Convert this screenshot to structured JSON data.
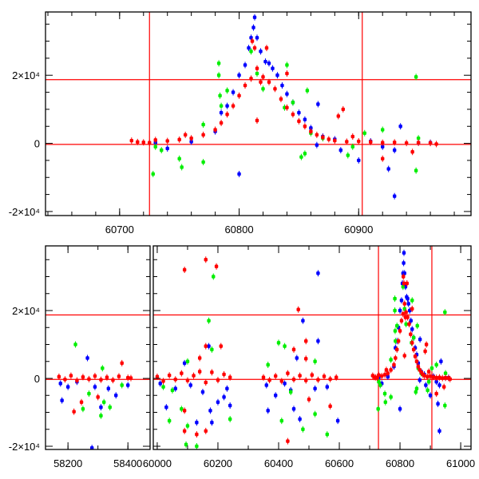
{
  "colors": {
    "blue": "#0000ff",
    "green": "#00ee00",
    "red": "#ff0000",
    "ref_line": "#ff0000",
    "axis": "#000000"
  },
  "chart_data": [
    {
      "type": "scatter",
      "title": "",
      "xlabel": "",
      "ylabel": "",
      "xlim": [
        60638,
        60994
      ],
      "ylim": [
        -21190,
        38570
      ],
      "xticks": [
        {
          "v": 60700,
          "label": "60700"
        },
        {
          "v": 60800,
          "label": "60800"
        },
        {
          "v": 60900,
          "label": "60900"
        }
      ],
      "yticks": [
        {
          "v": 20000,
          "label": "2×10⁴"
        },
        {
          "v": 0,
          "label": "0"
        },
        {
          "v": -20000,
          "label": "-2×10⁴"
        }
      ],
      "x_minor_step": 20,
      "y_minor_step": 5000,
      "hlines": [
        18700,
        -300
      ],
      "vlines": [
        60725,
        60903
      ]
    },
    {
      "type": "scatter",
      "title": "",
      "xlabel": "",
      "ylabel": "",
      "broken_axis": true,
      "segments": [
        {
          "xlim": [
            58125,
            58474
          ],
          "xticks": [
            {
              "v": 58200,
              "label": "58200"
            },
            {
              "v": 58400,
              "label": "58400"
            }
          ]
        },
        {
          "xlim": [
            59987,
            61034
          ],
          "xticks": [
            {
              "v": 60000,
              "label": "60000"
            },
            {
              "v": 60200,
              "label": "60200"
            },
            {
              "v": 60400,
              "label": "60400"
            },
            {
              "v": 60600,
              "label": "60600"
            },
            {
              "v": 60800,
              "label": "60800"
            },
            {
              "v": 61000,
              "label": "61000"
            }
          ]
        }
      ],
      "ylim": [
        -20940,
        39060
      ],
      "yticks": [
        {
          "v": 20000,
          "label": "2×10⁴"
        },
        {
          "v": 0,
          "label": "0"
        },
        {
          "v": -20000,
          "label": "-2×10⁴"
        }
      ],
      "x_minor_step": 100,
      "y_minor_step": 5000,
      "hlines": [
        18700,
        -300
      ],
      "vlines": [
        60729,
        60905
      ]
    }
  ],
  "series": [
    {
      "name": "blue",
      "color": "#0000ff",
      "points": [
        [
          58175,
          -1500
        ],
        [
          58180,
          -6500
        ],
        [
          58200,
          -2500
        ],
        [
          58265,
          6000
        ],
        [
          58280,
          -20500
        ],
        [
          58310,
          -8500
        ],
        [
          58335,
          -3000
        ],
        [
          58360,
          -5000
        ],
        [
          58400,
          -2000
        ],
        [
          58230,
          -1000
        ],
        [
          58290,
          -2500
        ],
        [
          60030,
          -8500
        ],
        [
          60060,
          -3000
        ],
        [
          60090,
          4500
        ],
        [
          60130,
          -13000
        ],
        [
          60170,
          9500
        ],
        [
          60175,
          -9500
        ],
        [
          60180,
          -13000
        ],
        [
          60200,
          -7000
        ],
        [
          60220,
          -5500
        ],
        [
          60240,
          -8000
        ],
        [
          60110,
          -2000
        ],
        [
          60150,
          -4000
        ],
        [
          60010,
          -1500
        ],
        [
          60230,
          -3000
        ],
        [
          60365,
          -9500
        ],
        [
          60390,
          -5000
        ],
        [
          60440,
          -3500
        ],
        [
          60460,
          6000
        ],
        [
          60470,
          -12000
        ],
        [
          60480,
          17000
        ],
        [
          60530,
          31000
        ],
        [
          60530,
          11000
        ],
        [
          60450,
          -9000
        ],
        [
          60520,
          -3000
        ],
        [
          60595,
          -12500
        ],
        [
          60360,
          -2000
        ],
        [
          60420,
          -1500
        ],
        [
          60560,
          -2500
        ],
        [
          60730,
          200
        ],
        [
          60740,
          -1500
        ],
        [
          60760,
          500
        ],
        [
          60780,
          3500
        ],
        [
          60785,
          9000
        ],
        [
          60790,
          11000
        ],
        [
          60795,
          15000
        ],
        [
          60800,
          20000
        ],
        [
          60805,
          23000
        ],
        [
          60808,
          28000
        ],
        [
          60810,
          31000
        ],
        [
          60812,
          34000
        ],
        [
          60813,
          37000
        ],
        [
          60815,
          31000
        ],
        [
          60818,
          27000
        ],
        [
          60822,
          24000
        ],
        [
          60825,
          23500
        ],
        [
          60828,
          22000
        ],
        [
          60832,
          20000
        ],
        [
          60836,
          17000
        ],
        [
          60840,
          14500
        ],
        [
          60845,
          12000
        ],
        [
          60850,
          9000
        ],
        [
          60855,
          7000
        ],
        [
          60860,
          4500
        ],
        [
          60866,
          11500
        ],
        [
          60865,
          -500
        ],
        [
          60870,
          2000
        ],
        [
          60880,
          1200
        ],
        [
          60885,
          -2000
        ],
        [
          60900,
          -5000
        ],
        [
          60910,
          600
        ],
        [
          60920,
          -1000
        ],
        [
          60925,
          -7500
        ],
        [
          60930,
          -2000
        ],
        [
          60935,
          5000
        ],
        [
          60930,
          -15500
        ],
        [
          60950,
          200
        ],
        [
          60960,
          200
        ],
        [
          60800,
          -9000
        ]
      ]
    },
    {
      "name": "green",
      "color": "#00ee00",
      "points": [
        [
          58225,
          10000
        ],
        [
          58250,
          -9000
        ],
        [
          58270,
          -4500
        ],
        [
          58310,
          -11000
        ],
        [
          58320,
          -7000
        ],
        [
          58340,
          -8500
        ],
        [
          58315,
          3000
        ],
        [
          58380,
          -2000
        ],
        [
          60040,
          -12500
        ],
        [
          60080,
          -9000
        ],
        [
          60095,
          -19500
        ],
        [
          60100,
          -14000
        ],
        [
          60130,
          -20000
        ],
        [
          60185,
          30000
        ],
        [
          60170,
          17000
        ],
        [
          60180,
          8500
        ],
        [
          60240,
          -12000
        ],
        [
          60050,
          -3500
        ],
        [
          60100,
          5000
        ],
        [
          60020,
          -2500
        ],
        [
          60365,
          4000
        ],
        [
          60400,
          10500
        ],
        [
          60410,
          -12500
        ],
        [
          60420,
          9500
        ],
        [
          60480,
          -15000
        ],
        [
          60520,
          -10500
        ],
        [
          60560,
          -16500
        ],
        [
          60440,
          -4000
        ],
        [
          60520,
          5000
        ],
        [
          60728,
          -9000
        ],
        [
          60730,
          -1000
        ],
        [
          60735,
          -2000
        ],
        [
          60750,
          -4500
        ],
        [
          60752,
          -7000
        ],
        [
          60770,
          -5500
        ],
        [
          60770,
          5500
        ],
        [
          60783,
          23500
        ],
        [
          60783,
          20000
        ],
        [
          60784,
          14000
        ],
        [
          60785,
          11000
        ],
        [
          60790,
          15500
        ],
        [
          60810,
          27000
        ],
        [
          60815,
          20500
        ],
        [
          60820,
          16000
        ],
        [
          60840,
          23000
        ],
        [
          60838,
          10500
        ],
        [
          60845,
          12000
        ],
        [
          60852,
          -4000
        ],
        [
          60855,
          -3000
        ],
        [
          60857,
          15500
        ],
        [
          60860,
          3000
        ],
        [
          60870,
          1500
        ],
        [
          60891,
          -3500
        ],
        [
          60895,
          -1000
        ],
        [
          60905,
          3000
        ],
        [
          60920,
          4000
        ],
        [
          60948,
          -8000
        ],
        [
          60948,
          19500
        ],
        [
          60950,
          1500
        ]
      ]
    },
    {
      "name": "red",
      "color": "#ff0000",
      "points": [
        [
          58170,
          500
        ],
        [
          58190,
          -300
        ],
        [
          58210,
          800
        ],
        [
          58230,
          -600
        ],
        [
          58250,
          400
        ],
        [
          58270,
          -200
        ],
        [
          58290,
          700
        ],
        [
          58310,
          -400
        ],
        [
          58330,
          300
        ],
        [
          58350,
          -500
        ],
        [
          58370,
          600
        ],
        [
          58380,
          4500
        ],
        [
          58400,
          200
        ],
        [
          58410,
          100
        ],
        [
          58220,
          -9800
        ],
        [
          58245,
          -7000
        ],
        [
          58300,
          -5500
        ],
        [
          60000,
          500
        ],
        [
          60020,
          -800
        ],
        [
          60040,
          900
        ],
        [
          60060,
          -300
        ],
        [
          60080,
          1500
        ],
        [
          60100,
          -600
        ],
        [
          60120,
          800
        ],
        [
          60140,
          2000
        ],
        [
          60160,
          -1200
        ],
        [
          60180,
          1800
        ],
        [
          60200,
          -500
        ],
        [
          60220,
          1200
        ],
        [
          60240,
          300
        ],
        [
          60090,
          32000
        ],
        [
          60160,
          35000
        ],
        [
          60195,
          33000
        ],
        [
          60160,
          9500
        ],
        [
          60210,
          9500
        ],
        [
          60090,
          -9500
        ],
        [
          60090,
          -15500
        ],
        [
          60130,
          -16500
        ],
        [
          60160,
          -15500
        ],
        [
          60140,
          6000
        ],
        [
          60350,
          300
        ],
        [
          60370,
          -500
        ],
        [
          60390,
          700
        ],
        [
          60410,
          -800
        ],
        [
          60430,
          1500
        ],
        [
          60450,
          -300
        ],
        [
          60470,
          800
        ],
        [
          60490,
          -600
        ],
        [
          60510,
          1000
        ],
        [
          60530,
          -400
        ],
        [
          60550,
          600
        ],
        [
          60570,
          -200
        ],
        [
          60590,
          300
        ],
        [
          60465,
          20300
        ],
        [
          60490,
          11000
        ],
        [
          60450,
          8500
        ],
        [
          60490,
          5800
        ],
        [
          60430,
          -18500
        ],
        [
          60570,
          -8200
        ],
        [
          60500,
          -6200
        ],
        [
          60710,
          800
        ],
        [
          60715,
          400
        ],
        [
          60720,
          300
        ],
        [
          60725,
          200
        ],
        [
          60730,
          1000
        ],
        [
          60740,
          700
        ],
        [
          60750,
          1100
        ],
        [
          60755,
          2500
        ],
        [
          60760,
          1500
        ],
        [
          60770,
          2500
        ],
        [
          60780,
          4000
        ],
        [
          60785,
          6000
        ],
        [
          60790,
          8500
        ],
        [
          60795,
          11000
        ],
        [
          60800,
          14000
        ],
        [
          60805,
          17000
        ],
        [
          60810,
          19000
        ],
        [
          60811,
          30000
        ],
        [
          60813,
          28000
        ],
        [
          60815,
          22000
        ],
        [
          60818,
          18000
        ],
        [
          60820,
          19500
        ],
        [
          60823,
          28000
        ],
        [
          60825,
          18000
        ],
        [
          60830,
          16000
        ],
        [
          60835,
          13000
        ],
        [
          60840,
          10500
        ],
        [
          60845,
          8500
        ],
        [
          60850,
          6500
        ],
        [
          60855,
          5000
        ],
        [
          60860,
          3500
        ],
        [
          60865,
          2500
        ],
        [
          60870,
          1800
        ],
        [
          60875,
          1200
        ],
        [
          60880,
          800
        ],
        [
          60890,
          500
        ],
        [
          60895,
          2000
        ],
        [
          60900,
          600
        ],
        [
          60910,
          400
        ],
        [
          60920,
          200
        ],
        [
          60920,
          -4500
        ],
        [
          60930,
          300
        ],
        [
          60940,
          100
        ],
        [
          60945,
          -2500
        ],
        [
          60950,
          200
        ],
        [
          60960,
          100
        ],
        [
          60965,
          -200
        ],
        [
          60815,
          6700
        ],
        [
          60887,
          10000
        ],
        [
          60883,
          8000
        ],
        [
          60840,
          20500
        ]
      ]
    }
  ]
}
